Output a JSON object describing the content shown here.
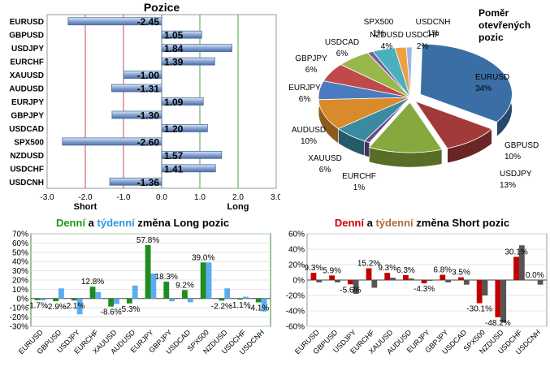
{
  "colors": {
    "long_daily": "#1e8c1e",
    "long_weekly": "#5aaef0",
    "short_daily": "#c00000",
    "short_weekly": "#555555",
    "pos_bar": "#5b7fb5",
    "title_green": "#1a9a1a",
    "title_blue": "#3399dd",
    "title_red": "#d40000",
    "title_brown": "#b06a3a"
  },
  "chart_data": [
    {
      "type": "bar",
      "orientation": "horizontal",
      "title": "Pozice",
      "categories": [
        "EURUSD",
        "GBPUSD",
        "USDJPY",
        "EURCHF",
        "XAUUSD",
        "AUDUSD",
        "EURJPY",
        "GBPJPY",
        "USDCAD",
        "SPX500",
        "NZDUSD",
        "USDCHF",
        "USDCNH"
      ],
      "values": [
        -2.45,
        1.05,
        1.84,
        1.39,
        -1.0,
        -1.31,
        1.09,
        -1.3,
        1.2,
        -2.6,
        1.57,
        1.41,
        -1.36
      ],
      "value_labels": [
        "-2.45",
        "1.05",
        "1.84",
        "1.39",
        "-1.00",
        "-1.31",
        "1.09",
        "-1.30",
        "1.20",
        "-2.60",
        "1.57",
        "1.41",
        "-1.36"
      ],
      "xlim": [
        -3.0,
        3.0
      ],
      "xticks": [
        "-3.0",
        "-2.0",
        "-1.0",
        "0.0",
        "1.0",
        "2.0",
        "3.0"
      ],
      "short_label": "Short",
      "long_label": "Long"
    },
    {
      "type": "pie",
      "title": "Poměr otevřených pozic",
      "title_lines": [
        "Poměr",
        "otevřených",
        "pozic"
      ],
      "slices": [
        {
          "name": "EURUSD",
          "value": 34,
          "label": "34%",
          "color": "#3a6ea5"
        },
        {
          "name": "GBPUSD",
          "value": 10,
          "label": "10%",
          "color": "#a33a3a"
        },
        {
          "name": "USDJPY",
          "value": 13,
          "label": "13%",
          "color": "#86a83e"
        },
        {
          "name": "EURCHF",
          "value": 1,
          "label": "1%",
          "color": "#6a4a8a"
        },
        {
          "name": "XAUUSD",
          "value": 6,
          "label": "6%",
          "color": "#3a8aa0"
        },
        {
          "name": "AUDUSD",
          "value": 10,
          "label": "10%",
          "color": "#d98a2a"
        },
        {
          "name": "EURJPY",
          "value": 6,
          "label": "6%",
          "color": "#4a7ac0"
        },
        {
          "name": "GBPJPY",
          "value": 6,
          "label": "6%",
          "color": "#c04a4a"
        },
        {
          "name": "USDCAD",
          "value": 6,
          "label": "6%",
          "color": "#98b84a"
        },
        {
          "name": "SPX500",
          "value": 1,
          "label": "1%",
          "color": "#7a5aa0"
        },
        {
          "name": "NZDUSD",
          "value": 4,
          "label": "4%",
          "color": "#4ab0c0"
        },
        {
          "name": "USDCHF",
          "value": 2,
          "label": "2%",
          "color": "#f0a040"
        },
        {
          "name": "USDCNH",
          "value": 1,
          "label": "1%",
          "color": "#9ab8e0"
        }
      ]
    },
    {
      "type": "bar",
      "title_parts": [
        "Denní",
        " a ",
        "týdenní",
        " změna Long pozic"
      ],
      "categories": [
        "EURUSD",
        "GBPUSD",
        "USDJPY",
        "EURCHF",
        "XAUUSD",
        "AUDUSD",
        "EURJPY",
        "GBPJPY",
        "USDCAD",
        "SPX500",
        "NZDUSD",
        "USDCHF",
        "USDCNH"
      ],
      "series": [
        {
          "values": [
            -1.7,
            -2.9,
            -2.1,
            12.8,
            -8.6,
            -5.3,
            57.8,
            18.3,
            9.2,
            39.0,
            -2.2,
            -1.1,
            -4.1
          ]
        },
        {
          "values": [
            -2.0,
            11.0,
            -17.0,
            7.0,
            -6.0,
            14.0,
            27.0,
            -3.0,
            -4.0,
            39.0,
            11.0,
            2.0,
            -14.0
          ]
        }
      ],
      "data_labels": [
        "-1.7%",
        "-2.9%",
        "-2.1%",
        "12.8%",
        "-8.6%",
        "-5.3%",
        "57.8%",
        "18.3%",
        "9.2%",
        "39.0%",
        "-2.2%",
        "-1.1%",
        "-4.1%"
      ],
      "ylim": [
        -30,
        70
      ],
      "yticks": [
        "70%",
        "60%",
        "50%",
        "40%",
        "30%",
        "20%",
        "10%",
        "0%",
        "-10%",
        "-20%",
        "-30%"
      ]
    },
    {
      "type": "bar",
      "title_parts": [
        "Denní",
        " a ",
        "týdenní",
        " změna Short pozic"
      ],
      "categories": [
        "EURUSD",
        "GBPUSD",
        "USDJPY",
        "EURCHF",
        "XAUUSD",
        "AUDUSD",
        "EURJPY",
        "GBPJPY",
        "USDCAD",
        "SPX500",
        "NZDUSD",
        "USDCHF",
        "USDCNH"
      ],
      "series": [
        {
          "values": [
            9.3,
            5.9,
            -5.6,
            15.2,
            9.3,
            6.3,
            -4.3,
            6.8,
            3.5,
            -30.1,
            -48.2,
            30.1,
            0.0
          ]
        },
        {
          "values": [
            -3.0,
            -3.0,
            -18.0,
            -10.0,
            3.0,
            2.0,
            -1.0,
            -3.0,
            -6.0,
            -20.0,
            -55.0,
            45.0,
            -6.0
          ]
        }
      ],
      "data_labels": [
        "9.3%",
        "5.9%",
        "-5.6%",
        "15.2%",
        "9.3%",
        "6.3%",
        "-4.3%",
        "6.8%",
        "3.5%",
        "-30.1%",
        "-48.2%",
        "30.1%",
        "0.0%"
      ],
      "ylim": [
        -60,
        60
      ],
      "yticks": [
        "60%",
        "40%",
        "20%",
        "0%",
        "-20%",
        "-40%",
        "-60%"
      ]
    }
  ]
}
